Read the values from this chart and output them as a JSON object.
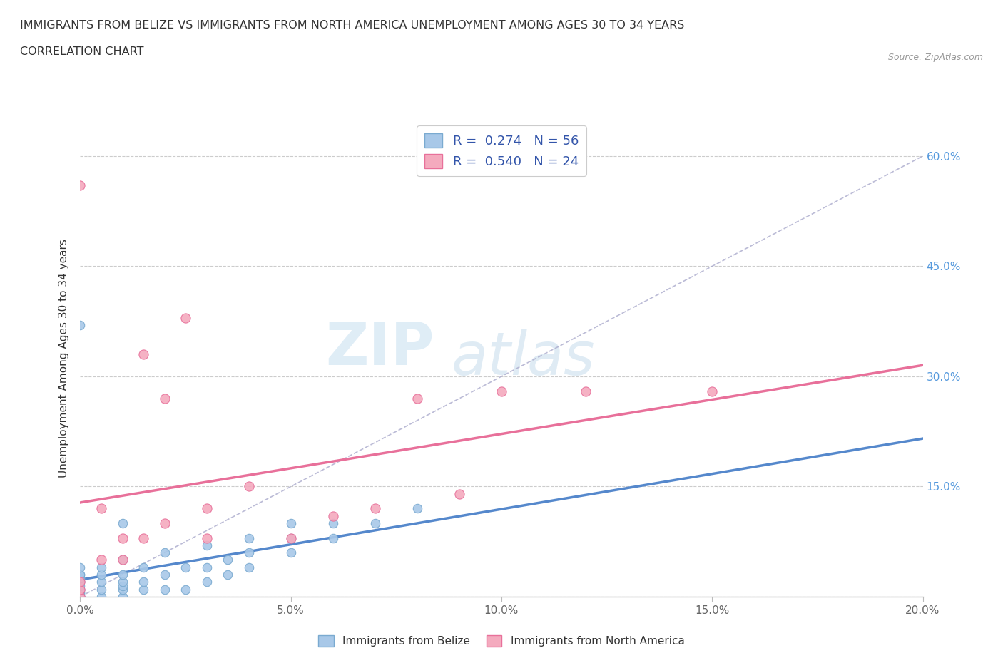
{
  "title_line1": "IMMIGRANTS FROM BELIZE VS IMMIGRANTS FROM NORTH AMERICA UNEMPLOYMENT AMONG AGES 30 TO 34 YEARS",
  "title_line2": "CORRELATION CHART",
  "source_text": "Source: ZipAtlas.com",
  "ylabel": "Unemployment Among Ages 30 to 34 years",
  "xlim": [
    0.0,
    0.2
  ],
  "ylim": [
    0.0,
    0.65
  ],
  "xtick_labels": [
    "0.0%",
    "5.0%",
    "10.0%",
    "15.0%",
    "20.0%"
  ],
  "xtick_values": [
    0.0,
    0.05,
    0.1,
    0.15,
    0.2
  ],
  "ytick_labels": [
    "0.0%",
    "15.0%",
    "30.0%",
    "45.0%",
    "60.0%"
  ],
  "ytick_values": [
    0.0,
    0.15,
    0.3,
    0.45,
    0.6
  ],
  "right_ytick_labels": [
    "60.0%",
    "45.0%",
    "30.0%",
    "15.0%"
  ],
  "right_ytick_positions": [
    0.6,
    0.45,
    0.3,
    0.15
  ],
  "belize_color": "#a8c8e8",
  "north_america_color": "#f4aabe",
  "belize_edge_color": "#7aaad0",
  "north_america_edge_color": "#e8709a",
  "belize_line_color": "#5588cc",
  "north_america_line_color": "#e8709a",
  "R_belize": 0.274,
  "N_belize": 56,
  "R_north_america": 0.54,
  "N_north_america": 24,
  "legend_color": "#3355aa",
  "watermark_text": "ZIP",
  "watermark_text2": "atlas",
  "belize_x": [
    0.0,
    0.0,
    0.0,
    0.0,
    0.0,
    0.0,
    0.0,
    0.0,
    0.0,
    0.0,
    0.0,
    0.0,
    0.0,
    0.0,
    0.0,
    0.0,
    0.0,
    0.0,
    0.0,
    0.0,
    0.0,
    0.005,
    0.005,
    0.005,
    0.005,
    0.005,
    0.01,
    0.01,
    0.01,
    0.01,
    0.01,
    0.01,
    0.015,
    0.015,
    0.015,
    0.02,
    0.02,
    0.02,
    0.025,
    0.025,
    0.03,
    0.03,
    0.03,
    0.035,
    0.035,
    0.04,
    0.04,
    0.04,
    0.05,
    0.05,
    0.05,
    0.06,
    0.06,
    0.07,
    0.08,
    0.01
  ],
  "belize_y": [
    0.0,
    0.0,
    0.0,
    0.0,
    0.0,
    0.0,
    0.005,
    0.005,
    0.01,
    0.01,
    0.01,
    0.015,
    0.02,
    0.02,
    0.02,
    0.025,
    0.025,
    0.03,
    0.03,
    0.04,
    0.37,
    0.0,
    0.01,
    0.02,
    0.03,
    0.04,
    0.0,
    0.01,
    0.015,
    0.02,
    0.03,
    0.05,
    0.01,
    0.02,
    0.04,
    0.01,
    0.03,
    0.06,
    0.01,
    0.04,
    0.02,
    0.04,
    0.07,
    0.03,
    0.05,
    0.04,
    0.06,
    0.08,
    0.06,
    0.08,
    0.1,
    0.08,
    0.1,
    0.1,
    0.12,
    0.1
  ],
  "north_america_x": [
    0.0,
    0.0,
    0.0,
    0.0,
    0.005,
    0.005,
    0.01,
    0.01,
    0.015,
    0.015,
    0.02,
    0.02,
    0.025,
    0.03,
    0.03,
    0.04,
    0.05,
    0.06,
    0.07,
    0.08,
    0.09,
    0.1,
    0.12,
    0.15
  ],
  "north_america_y": [
    0.0,
    0.01,
    0.02,
    0.56,
    0.05,
    0.12,
    0.05,
    0.08,
    0.08,
    0.33,
    0.1,
    0.27,
    0.38,
    0.08,
    0.12,
    0.15,
    0.08,
    0.11,
    0.12,
    0.27,
    0.14,
    0.28,
    0.28,
    0.28
  ]
}
